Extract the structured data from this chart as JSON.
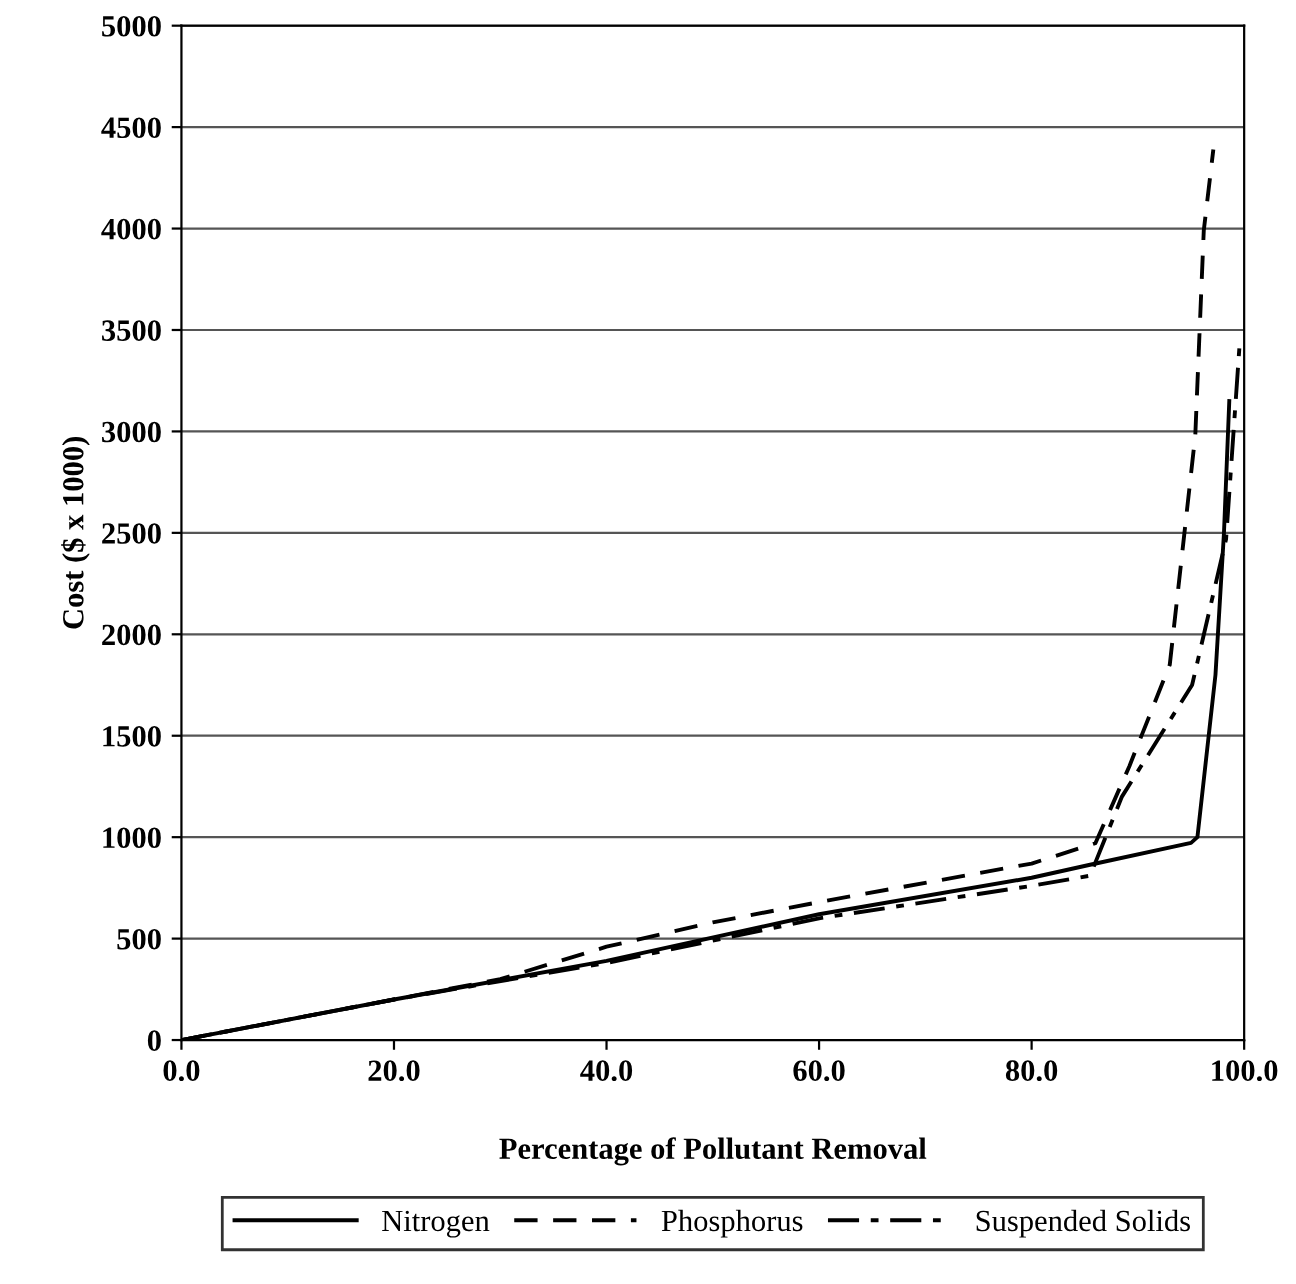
{
  "chart_data": {
    "type": "line",
    "xlabel": "Percentage of Pollutant Removal",
    "ylabel": "Cost ($ x 1000)",
    "xlim": [
      0,
      100
    ],
    "ylim": [
      0,
      5000
    ],
    "xticks": [
      {
        "value": 0,
        "label": "0.0"
      },
      {
        "value": 20,
        "label": "20.0"
      },
      {
        "value": 40,
        "label": "40.0"
      },
      {
        "value": 60,
        "label": "60.0"
      },
      {
        "value": 80,
        "label": "80.0"
      },
      {
        "value": 100,
        "label": "100.0"
      }
    ],
    "yticks": [
      0,
      500,
      1000,
      1500,
      2000,
      2500,
      3000,
      3500,
      4000,
      4500,
      5000
    ],
    "grid": "y",
    "legend": "bottom",
    "marker": "none",
    "series": [
      {
        "name": "Nitrogen",
        "color": "#000000",
        "line_style": "solid",
        "x": [
          0,
          20,
          40,
          60,
          80,
          85.5,
          95,
          95.6,
          97.3,
          98.1,
          98.6
        ],
        "values": [
          0,
          200,
          390,
          620,
          800,
          864,
          972,
          1000,
          1800,
          2500,
          3150
        ]
      },
      {
        "name": "Phosphorus",
        "color": "#000000",
        "line_style": "dashed",
        "x": [
          0,
          20,
          30,
          40,
          50,
          60,
          80,
          86,
          89.2,
          93,
          95.4,
          96.2,
          97.1
        ],
        "values": [
          0,
          200,
          300,
          460,
          580,
          680,
          870,
          970,
          1350,
          1850,
          2980,
          3990,
          4390
        ]
      },
      {
        "name": "Suspended Solids",
        "color": "#000000",
        "line_style": "dashdot",
        "x": [
          0,
          20,
          40,
          60,
          80,
          85.5,
          88.5,
          95.1,
          98.3,
          99.6
        ],
        "values": [
          0,
          200,
          380,
          600,
          760,
          810,
          1200,
          1750,
          2470,
          3450
        ]
      }
    ]
  }
}
